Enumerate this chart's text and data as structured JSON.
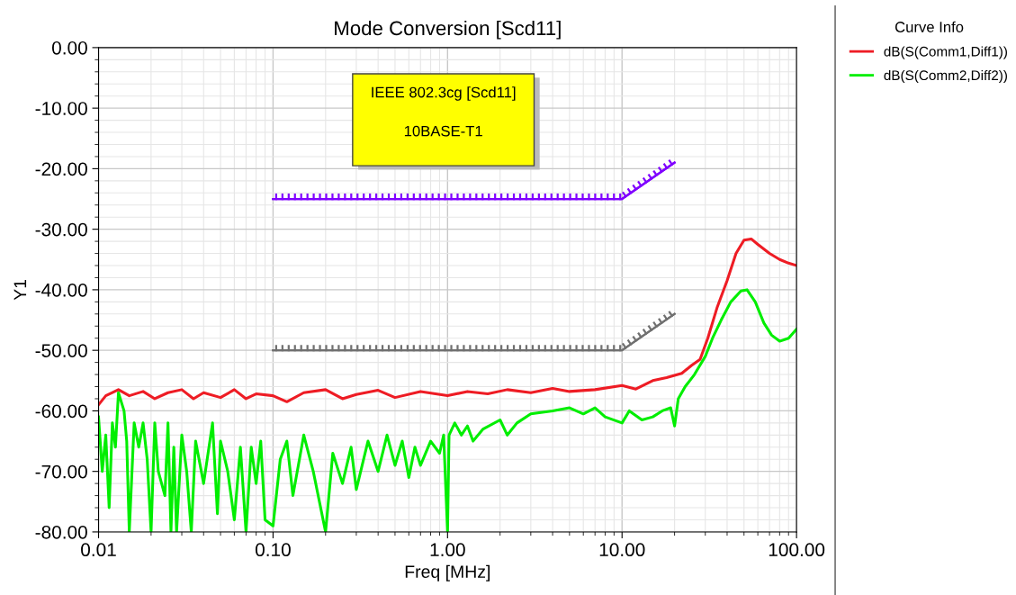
{
  "chart_data": {
    "type": "line",
    "title": "Mode Conversion [Scd11]",
    "xlabel": "Freq [MHz]",
    "ylabel": "Y1",
    "legend_title": "Curve Info",
    "legend": "right",
    "grid": true,
    "log": "x",
    "xlim": [
      0.01,
      100
    ],
    "xticks": [
      0.01,
      {
        "value": 0.1,
        "label": "0.10"
      },
      {
        "value": 1,
        "label": "1.00"
      },
      {
        "value": 10,
        "label": "10.00"
      },
      {
        "value": 100,
        "label": "100.00"
      }
    ],
    "ylim": [
      -80,
      0
    ],
    "yticks": [
      {
        "value": -80,
        "label": "-80.00"
      },
      {
        "value": -70,
        "label": "-70.00"
      },
      {
        "value": -60,
        "label": "-60.00"
      },
      {
        "value": -50,
        "label": "-50.00"
      },
      {
        "value": -40,
        "label": "-40.00"
      },
      {
        "value": -30,
        "label": "-30.00"
      },
      {
        "value": -20,
        "label": "-20.00"
      },
      {
        "value": -10,
        "label": "-10.00"
      },
      {
        "value": 0,
        "label": "0.00"
      }
    ],
    "annotations": [
      "IEEE 802.3cg [Scd11]",
      "10BASE-T1"
    ],
    "series": [
      {
        "color": "#8000ff",
        "x": [
          0.1,
          10,
          20
        ],
        "values": [
          -25,
          -25,
          -19
        ]
      },
      {
        "color": "#707070",
        "x": [
          0.1,
          10,
          20
        ],
        "values": [
          -50,
          -50,
          -44
        ]
      },
      {
        "name": "dB(S(Comm1,Diff1))",
        "color": "#ee1c24",
        "x": [
          0.01,
          0.011,
          0.013,
          0.015,
          0.018,
          0.021,
          0.025,
          0.03,
          0.035,
          0.04,
          0.05,
          0.06,
          0.07,
          0.08,
          0.1,
          0.12,
          0.15,
          0.2,
          0.25,
          0.3,
          0.4,
          0.5,
          0.7,
          1.0,
          1.3,
          1.7,
          2.2,
          3,
          4,
          5,
          7,
          10,
          12,
          15,
          18,
          22,
          25,
          28,
          31,
          35,
          40,
          45,
          50,
          55,
          60,
          70,
          80,
          90,
          100
        ],
        "values": [
          -59,
          -57.5,
          -56.5,
          -57.5,
          -56.8,
          -58,
          -57,
          -56.5,
          -58,
          -57,
          -57.8,
          -56.5,
          -58,
          -57.2,
          -57.5,
          -58.5,
          -57,
          -56.5,
          -58,
          -57.3,
          -56.6,
          -57.8,
          -56.8,
          -57.5,
          -56.8,
          -57.2,
          -56.5,
          -57,
          -56.3,
          -56.8,
          -56.5,
          -55.8,
          -56.4,
          -55,
          -54.5,
          -53.8,
          -52.5,
          -51.5,
          -48,
          -43,
          -38.5,
          -34,
          -31.8,
          -31.6,
          -32.5,
          -34,
          -35,
          -35.6,
          -36
        ]
      },
      {
        "name": "dB(S(Comm2,Diff2))",
        "color": "#00ee00",
        "x": [
          0.01,
          0.0105,
          0.011,
          0.0115,
          0.012,
          0.0125,
          0.013,
          0.014,
          0.0145,
          0.015,
          0.016,
          0.017,
          0.018,
          0.019,
          0.02,
          0.021,
          0.022,
          0.024,
          0.025,
          0.026,
          0.027,
          0.028,
          0.03,
          0.032,
          0.034,
          0.036,
          0.04,
          0.045,
          0.048,
          0.05,
          0.055,
          0.06,
          0.065,
          0.07,
          0.075,
          0.08,
          0.085,
          0.09,
          0.1,
          0.11,
          0.12,
          0.13,
          0.15,
          0.17,
          0.2,
          0.22,
          0.25,
          0.28,
          0.3,
          0.35,
          0.4,
          0.45,
          0.5,
          0.55,
          0.6,
          0.65,
          0.7,
          0.8,
          0.9,
          0.95,
          1.0,
          1.02,
          1.1,
          1.2,
          1.3,
          1.4,
          1.6,
          2.0,
          2.2,
          2.5,
          3,
          4,
          5,
          6,
          7,
          8,
          10,
          11,
          13,
          15,
          17,
          19,
          20,
          21,
          23,
          26,
          30,
          33,
          37,
          42,
          48,
          52,
          58,
          65,
          72,
          80,
          90,
          100
        ],
        "values": [
          -61,
          -70,
          -64,
          -76,
          -62,
          -66,
          -57,
          -60,
          -65,
          -80,
          -62,
          -66,
          -62,
          -68,
          -80,
          -62,
          -70,
          -74,
          -62,
          -80,
          -66,
          -80,
          -64,
          -70,
          -80,
          -65,
          -72,
          -62,
          -77,
          -65,
          -70,
          -78,
          -66,
          -80,
          -66,
          -72,
          -65,
          -78,
          -79,
          -68,
          -65,
          -74,
          -64,
          -70,
          -80,
          -67,
          -72,
          -66,
          -73,
          -65,
          -70,
          -64,
          -69,
          -65,
          -71,
          -66,
          -69,
          -65,
          -67,
          -64,
          -80,
          -64,
          -62,
          -64,
          -62.5,
          -65,
          -63,
          -61.5,
          -64,
          -62,
          -60.5,
          -60,
          -59.5,
          -60.5,
          -59.5,
          -61,
          -62,
          -60,
          -61.5,
          -61,
          -60,
          -59.5,
          -62.5,
          -58,
          -56,
          -54,
          -51,
          -48,
          -45,
          -42,
          -40.2,
          -40,
          -42,
          -45.5,
          -47.5,
          -48.5,
          -48,
          -46.5
        ]
      }
    ]
  }
}
